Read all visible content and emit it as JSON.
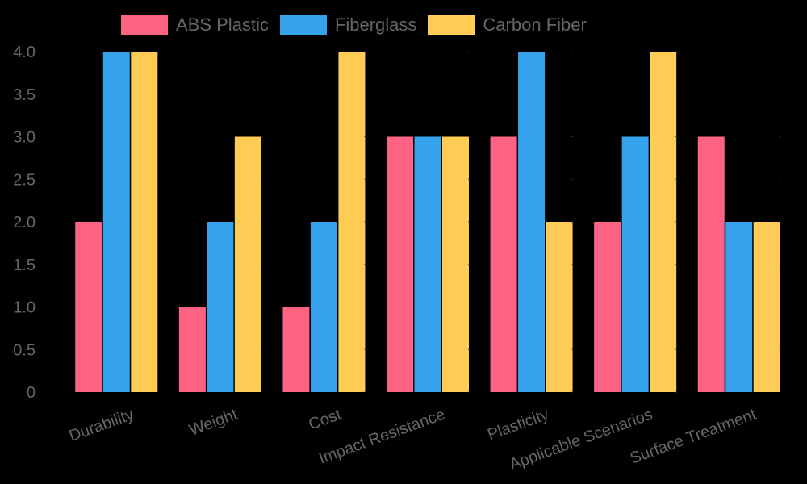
{
  "chart_data": {
    "type": "bar",
    "title": "",
    "xlabel": "",
    "ylabel": "",
    "ylim": [
      0,
      4.0
    ],
    "yticks": [
      "0",
      "0.5",
      "1.0",
      "1.5",
      "2.0",
      "2.5",
      "3.0",
      "3.5",
      "4.0"
    ],
    "grid": false,
    "legend_position": "top",
    "categories": [
      "Durability",
      "Weight",
      "Cost",
      "Impact Resistance",
      "Plasticity",
      "Applicable Scenarios",
      "Surface Treatment"
    ],
    "series": [
      {
        "name": "ABS Plastic",
        "color": "#ff6384",
        "values": [
          2,
          1,
          1,
          3,
          3,
          2,
          3
        ]
      },
      {
        "name": "Fiberglass",
        "color": "#36a2eb",
        "values": [
          4,
          2,
          2,
          3,
          4,
          3,
          2
        ]
      },
      {
        "name": "Carbon Fiber",
        "color": "#ffcd56",
        "values": [
          4,
          3,
          4,
          3,
          2,
          4,
          2
        ]
      }
    ]
  },
  "legend": {
    "items": [
      {
        "label": "ABS Plastic",
        "color": "#ff6384"
      },
      {
        "label": "Fiberglass",
        "color": "#36a2eb"
      },
      {
        "label": "Carbon Fiber",
        "color": "#ffcd56"
      }
    ]
  },
  "colors": {
    "background": "#000000",
    "text": "#666666"
  }
}
